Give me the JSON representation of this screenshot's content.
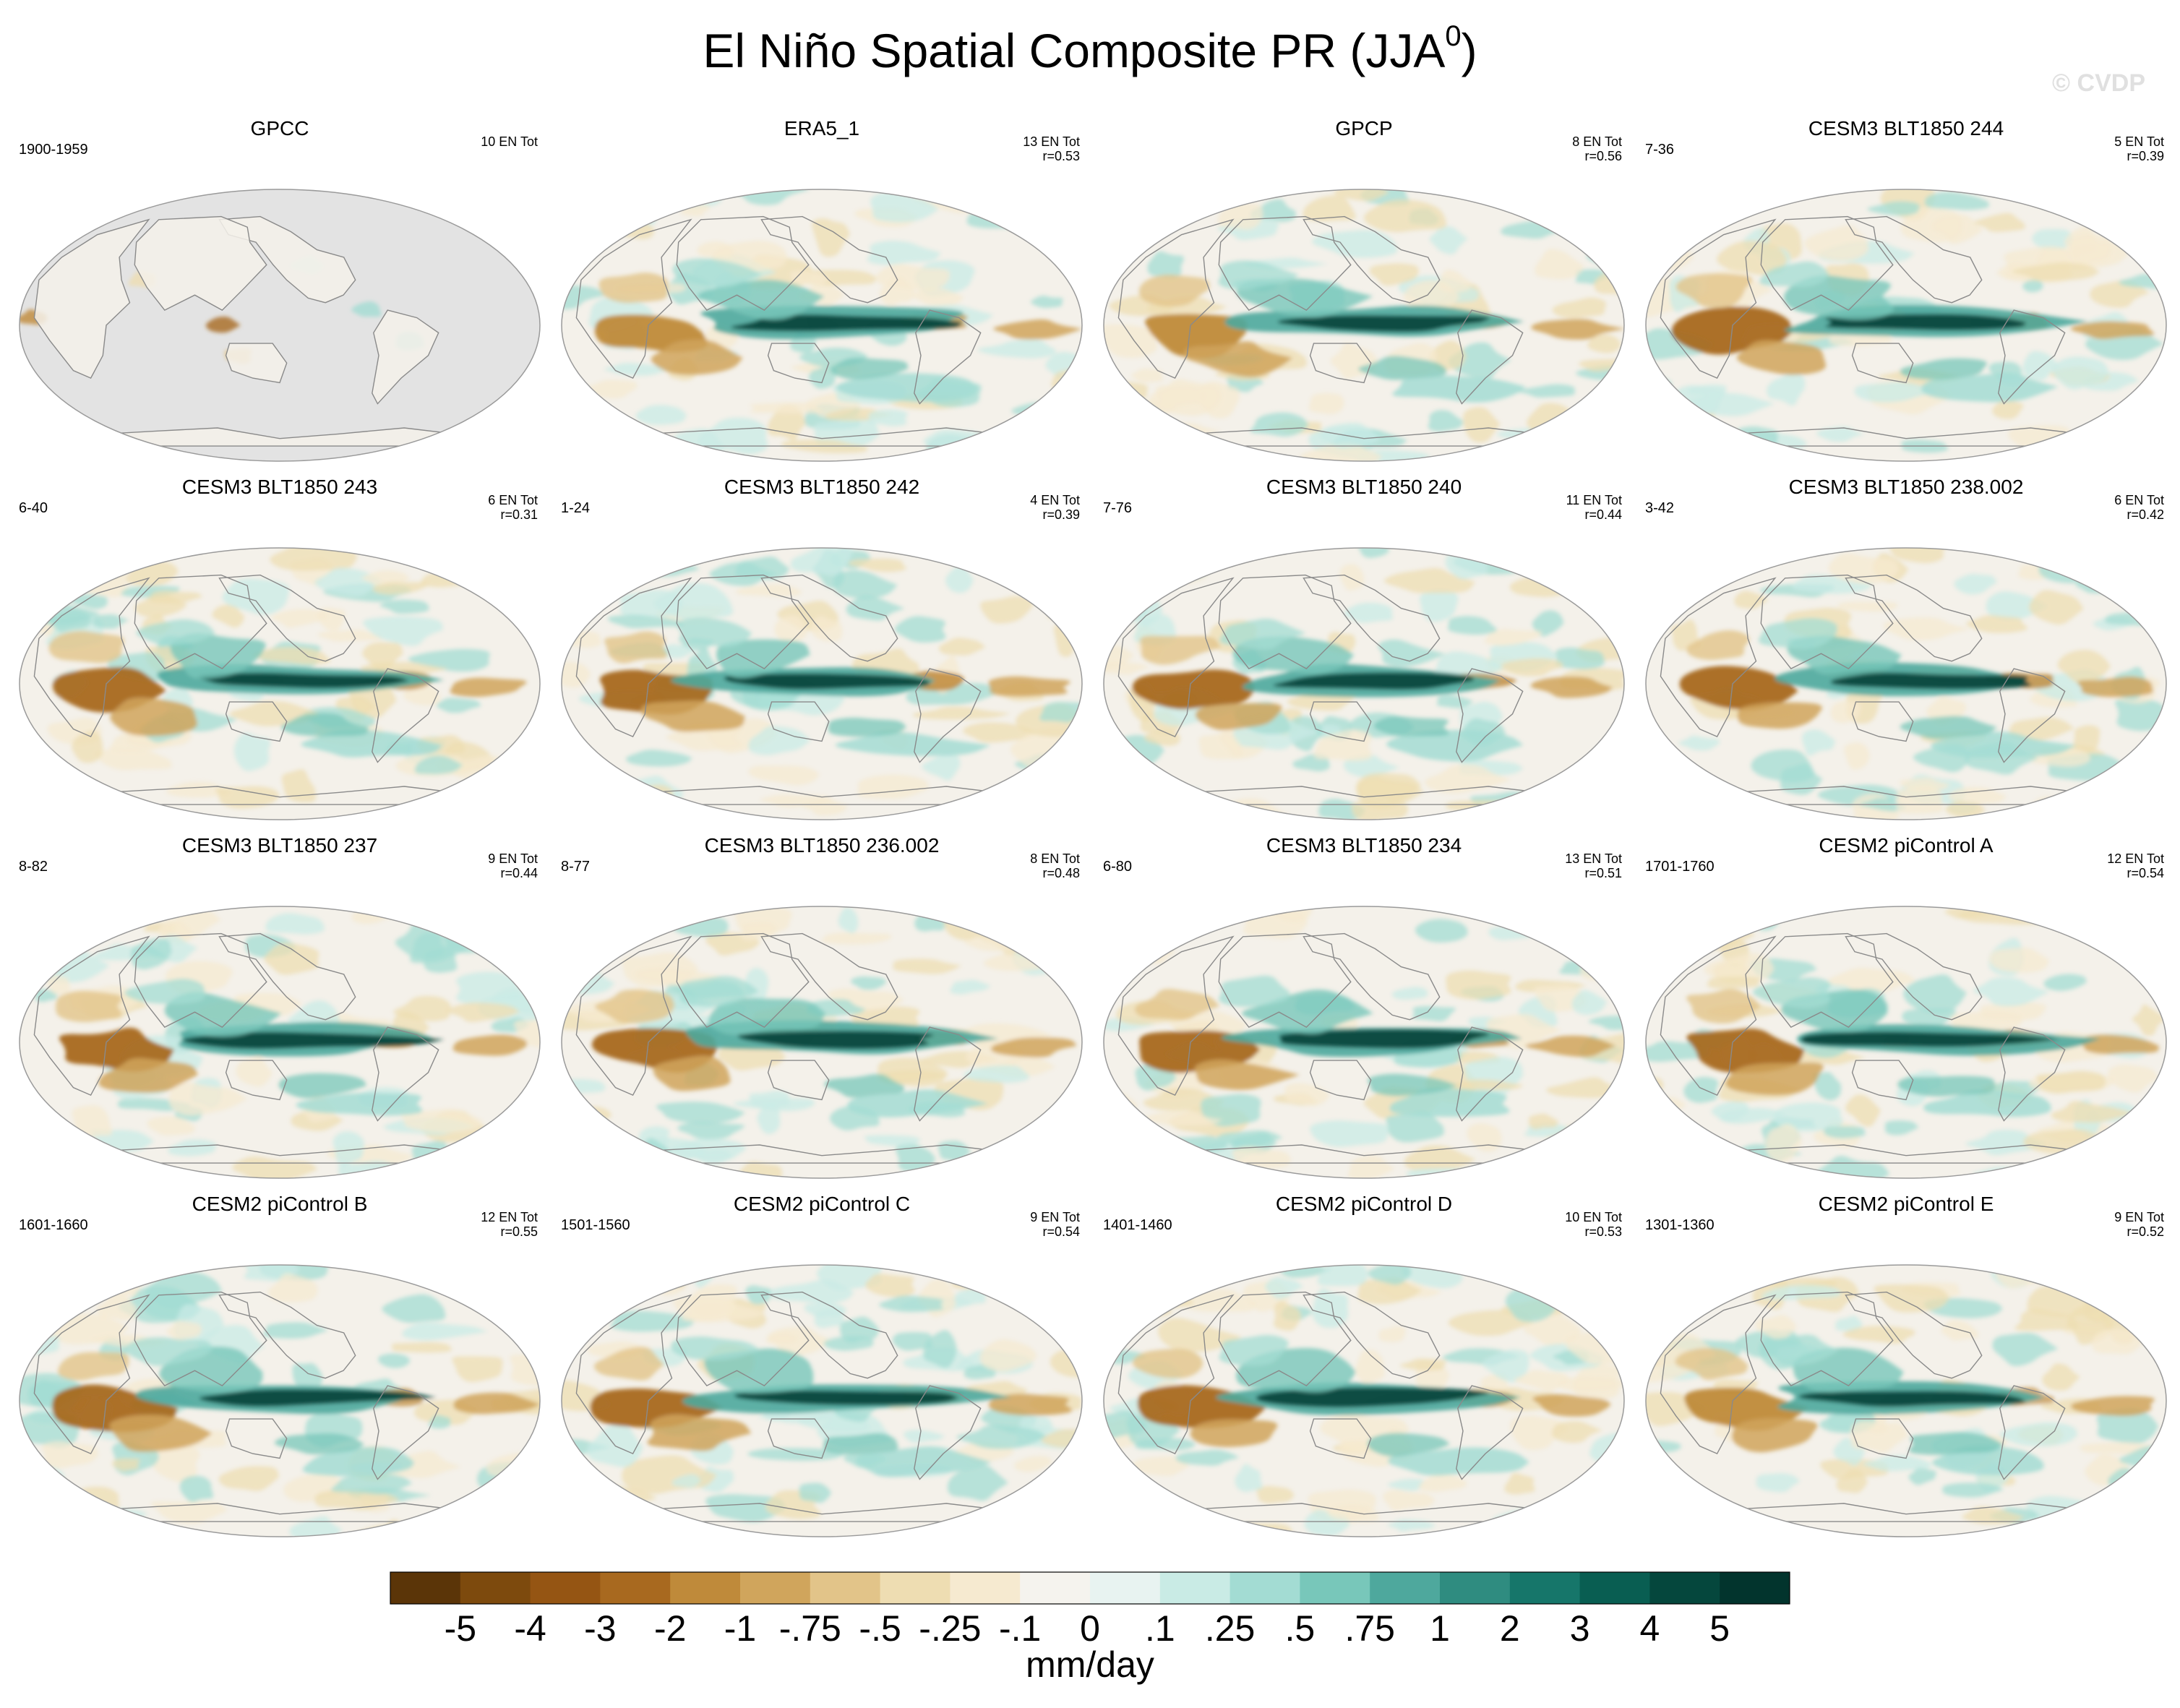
{
  "page": {
    "title_main": "El Niño Spatial Composite PR (JJA",
    "title_sup": "0",
    "title_close": ")",
    "watermark": "© CVDP"
  },
  "chart_data": {
    "type": "heatmap",
    "projection": "robinson-global",
    "variable": "PR",
    "season": "JJA",
    "units": "mm/day",
    "colorbar": {
      "labels": [
        "-5",
        "-4",
        "-3",
        "-2",
        "-1",
        "-.75",
        "-.5",
        "-.25",
        "-.1",
        "0",
        ".1",
        ".25",
        ".5",
        ".75",
        "1",
        "2",
        "3",
        "4",
        "5"
      ],
      "colors": [
        "#5b3508",
        "#7d4a0d",
        "#955513",
        "#a8691f",
        "#bf8a3a",
        "#d0a55c",
        "#e2c489",
        "#eeddb2",
        "#f6ead0",
        "#f5f3ee",
        "#e8f3f1",
        "#c9ebe5",
        "#a3dcd3",
        "#78c7ba",
        "#4ea89d",
        "#2f8c80",
        "#16766a",
        "#095e52",
        "#05473d",
        "#02342d"
      ]
    },
    "panels": [
      {
        "name": "GPCC",
        "period": "1900-1959",
        "events": "10 EN Tot",
        "r": "",
        "land_only": true,
        "strength": 0.35,
        "seed": 11
      },
      {
        "name": "ERA5_1",
        "period": "",
        "events": "13 EN Tot",
        "r": "r=0.53",
        "land_only": false,
        "strength": 0.8,
        "seed": 23
      },
      {
        "name": "GPCP",
        "period": "",
        "events": "8 EN Tot",
        "r": "r=0.56",
        "land_only": false,
        "strength": 0.75,
        "seed": 37
      },
      {
        "name": "CESM3 BLT1850 244",
        "period": "7-36",
        "events": "5 EN Tot",
        "r": "r=0.39",
        "land_only": false,
        "strength": 1.0,
        "seed": 41
      },
      {
        "name": "CESM3 BLT1850 243",
        "period": "6-40",
        "events": "6 EN Tot",
        "r": "r=0.31",
        "land_only": false,
        "strength": 0.9,
        "seed": 53
      },
      {
        "name": "CESM3 BLT1850 242",
        "period": "1-24",
        "events": "4 EN Tot",
        "r": "r=0.39",
        "land_only": false,
        "strength": 1.0,
        "seed": 67
      },
      {
        "name": "CESM3 BLT1850 240",
        "period": "7-76",
        "events": "11 EN Tot",
        "r": "r=0.44",
        "land_only": false,
        "strength": 0.95,
        "seed": 71
      },
      {
        "name": "CESM3 BLT1850 238.002",
        "period": "3-42",
        "events": "6 EN Tot",
        "r": "r=0.42",
        "land_only": false,
        "strength": 0.95,
        "seed": 83
      },
      {
        "name": "CESM3 BLT1850 237",
        "period": "8-82",
        "events": "9 EN Tot",
        "r": "r=0.44",
        "land_only": false,
        "strength": 0.95,
        "seed": 97
      },
      {
        "name": "CESM3 BLT1850 236.002",
        "period": "8-77",
        "events": "8 EN Tot",
        "r": "r=0.48",
        "land_only": false,
        "strength": 0.95,
        "seed": 101
      },
      {
        "name": "CESM3 BLT1850 234",
        "period": "6-80",
        "events": "13 EN Tot",
        "r": "r=0.51",
        "land_only": false,
        "strength": 0.9,
        "seed": 113
      },
      {
        "name": "CESM2 piControl A",
        "period": "1701-1760",
        "events": "12 EN Tot",
        "r": "r=0.54",
        "land_only": false,
        "strength": 0.9,
        "seed": 127
      },
      {
        "name": "CESM2 piControl B",
        "period": "1601-1660",
        "events": "12 EN Tot",
        "r": "r=0.55",
        "land_only": false,
        "strength": 0.85,
        "seed": 131
      },
      {
        "name": "CESM2 piControl C",
        "period": "1501-1560",
        "events": "9 EN Tot",
        "r": "r=0.54",
        "land_only": false,
        "strength": 0.85,
        "seed": 149
      },
      {
        "name": "CESM2 piControl D",
        "period": "1401-1460",
        "events": "10 EN Tot",
        "r": "r=0.53",
        "land_only": false,
        "strength": 0.85,
        "seed": 151
      },
      {
        "name": "CESM2 piControl E",
        "period": "1301-1360",
        "events": "9 EN Tot",
        "r": "r=0.52",
        "land_only": false,
        "strength": 0.8,
        "seed": 163
      }
    ]
  }
}
